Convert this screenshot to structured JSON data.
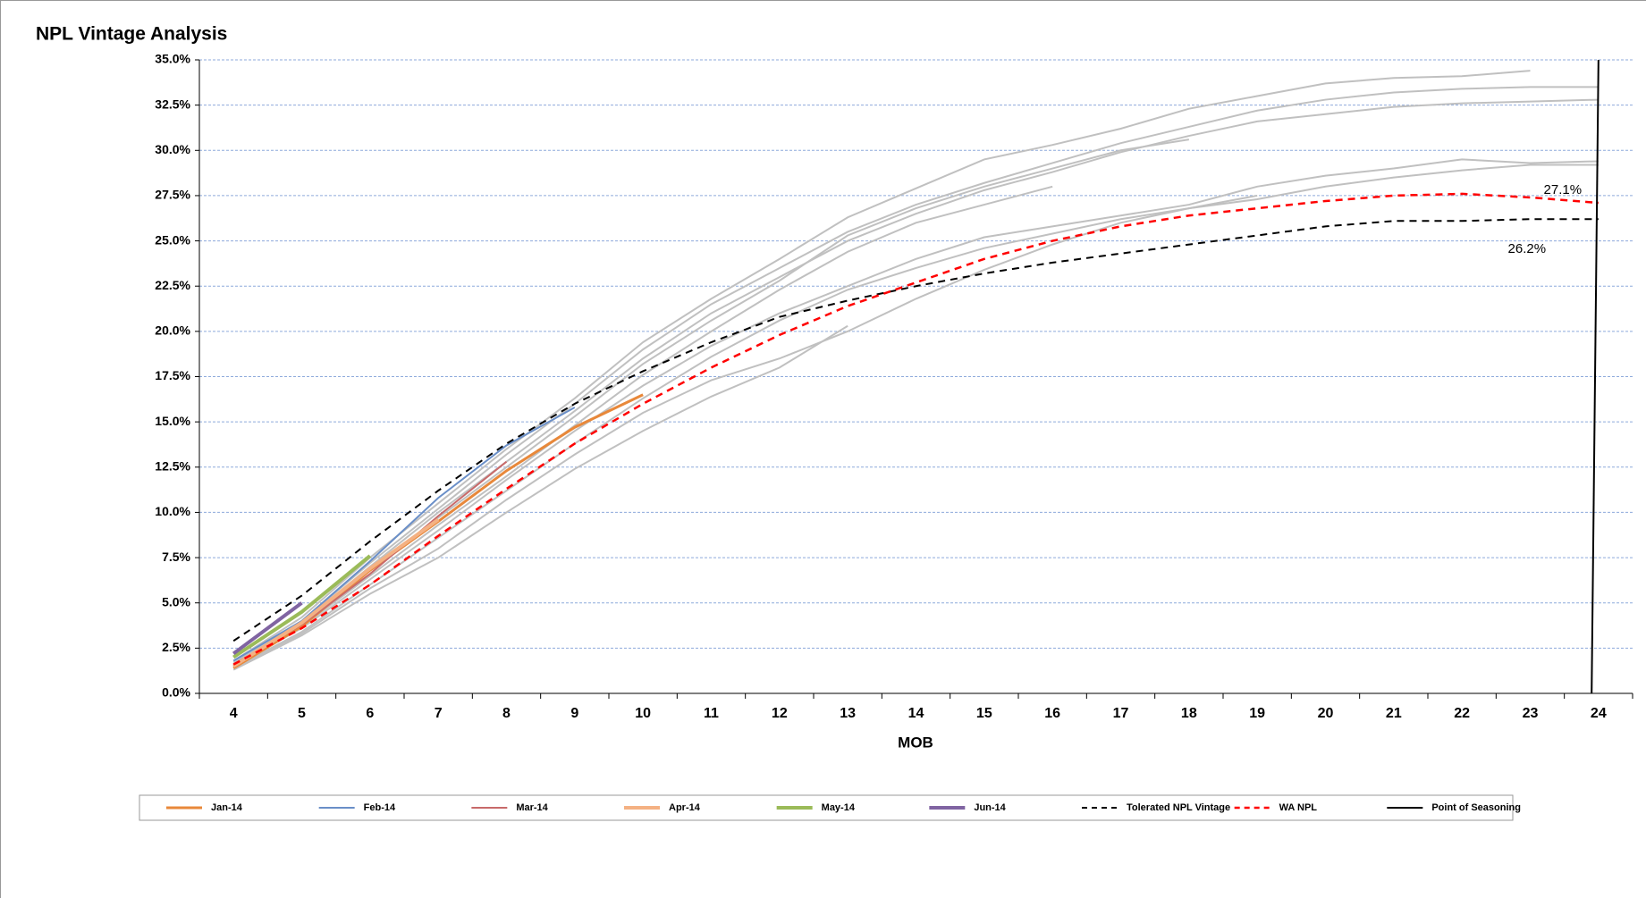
{
  "chart_data": {
    "type": "line",
    "title": "NPL Vintage Analysis",
    "x_label": "MOB",
    "x": [
      4,
      5,
      6,
      7,
      8,
      9,
      10,
      11,
      12,
      13,
      14,
      15,
      16,
      17,
      18,
      19,
      20,
      21,
      22,
      23,
      24
    ],
    "ylim": [
      0,
      35
    ],
    "yticks": [
      {
        "value": 0,
        "label": "0.0%"
      },
      {
        "value": 2.5,
        "label": "2.5%"
      },
      {
        "value": 5,
        "label": "5.0%"
      },
      {
        "value": 7.5,
        "label": "7.5%"
      },
      {
        "value": 10,
        "label": "10.0%"
      },
      {
        "value": 12.5,
        "label": "12.5%"
      },
      {
        "value": 15,
        "label": "15.0%"
      },
      {
        "value": 17.5,
        "label": "17.5%"
      },
      {
        "value": 20,
        "label": "20.0%"
      },
      {
        "value": 22.5,
        "label": "22.5%"
      },
      {
        "value": 25,
        "label": "25.0%"
      },
      {
        "value": 27.5,
        "label": "27.5%"
      },
      {
        "value": 30,
        "label": "30.0%"
      },
      {
        "value": 32.5,
        "label": "32.5%"
      },
      {
        "value": 35,
        "label": "35.0%"
      }
    ],
    "grid": true,
    "legend": "bottom",
    "series": [
      {
        "color": "#c0c0c0",
        "values": [
          1.8,
          4.2,
          7.5,
          10.5,
          13.5,
          16.3,
          19.4,
          21.8,
          24.0,
          26.3,
          27.9,
          29.5,
          30.3,
          31.2,
          32.3,
          33.0,
          33.7,
          34.0,
          34.1,
          34.4,
          null
        ]
      },
      {
        "color": "#c0c0c0",
        "values": [
          1.7,
          4.0,
          7.2,
          10.2,
          13.2,
          16.0,
          19.0,
          21.5,
          23.5,
          25.5,
          27.0,
          28.2,
          29.3,
          30.4,
          31.3,
          32.2,
          32.8,
          33.2,
          33.4,
          33.5,
          33.5
        ]
      },
      {
        "color": "#c0c0c0",
        "values": [
          1.6,
          3.9,
          7.0,
          10.0,
          12.8,
          15.6,
          18.5,
          21.0,
          23.0,
          25.0,
          26.5,
          27.8,
          28.8,
          29.9,
          30.8,
          31.6,
          32.0,
          32.4,
          32.6,
          32.7,
          32.8
        ]
      },
      {
        "color": "#c0c0c0",
        "values": [
          1.5,
          3.8,
          6.8,
          9.7,
          12.5,
          15.3,
          18.2,
          20.6,
          22.8,
          25.3,
          26.8,
          28.0,
          29.0,
          30.0,
          30.6,
          null,
          null,
          null,
          null,
          null,
          null
        ]
      },
      {
        "color": "#c0c0c0",
        "values": [
          1.5,
          3.7,
          6.5,
          9.3,
          12.0,
          14.8,
          17.6,
          20.0,
          22.3,
          24.4,
          26.0,
          27.0,
          28.0,
          null,
          null,
          null,
          null,
          null,
          null,
          null,
          null
        ]
      },
      {
        "color": "#c0c0c0",
        "values": [
          1.5,
          3.6,
          6.3,
          9.0,
          11.8,
          14.5,
          17.0,
          19.2,
          21.0,
          22.5,
          24.0,
          25.2,
          25.8,
          26.4,
          27.0,
          28.0,
          28.6,
          29.0,
          29.5,
          29.3,
          29.4
        ]
      },
      {
        "color": "#c0c0c0",
        "values": [
          1.4,
          3.4,
          6.0,
          8.6,
          11.2,
          13.8,
          16.3,
          18.6,
          20.6,
          22.3,
          23.5,
          24.6,
          25.4,
          26.2,
          26.8,
          27.3,
          28.0,
          28.5,
          28.9,
          29.2,
          29.2
        ]
      },
      {
        "color": "#c0c0c0",
        "values": [
          1.4,
          3.3,
          5.8,
          8.0,
          10.7,
          13.2,
          15.5,
          17.3,
          18.5,
          20.0,
          21.8,
          23.4,
          24.8,
          26.0,
          26.8,
          27.5,
          null,
          null,
          null,
          null,
          null
        ]
      },
      {
        "color": "#c0c0c0",
        "values": [
          1.3,
          3.2,
          5.5,
          7.5,
          10.0,
          12.4,
          14.5,
          16.4,
          18.0,
          20.3,
          null,
          null,
          null,
          null,
          null,
          null,
          null,
          null,
          null,
          null,
          null
        ]
      },
      {
        "name": "Jan-14",
        "color": "#e8883a",
        "width": 3,
        "values": [
          1.4,
          3.7,
          6.8,
          9.5,
          12.3,
          14.7,
          16.5,
          null,
          null,
          null,
          null,
          null,
          null,
          null,
          null,
          null,
          null,
          null,
          null,
          null,
          null
        ]
      },
      {
        "name": "Feb-14",
        "color": "#6a8fc8",
        "width": 2,
        "values": [
          1.8,
          4.0,
          7.3,
          10.8,
          13.7,
          15.8,
          null,
          null,
          null,
          null,
          null,
          null,
          null,
          null,
          null,
          null,
          null,
          null,
          null,
          null,
          null
        ]
      },
      {
        "name": "Mar-14",
        "color": "#c86a6a",
        "width": 2,
        "values": [
          1.6,
          3.8,
          6.6,
          9.8,
          12.8,
          null,
          null,
          null,
          null,
          null,
          null,
          null,
          null,
          null,
          null,
          null,
          null,
          null,
          null,
          null,
          null
        ]
      },
      {
        "name": "Apr-14",
        "color": "#f4b183",
        "width": 4,
        "values": [
          1.5,
          3.9,
          6.9,
          9.6,
          null,
          null,
          null,
          null,
          null,
          null,
          null,
          null,
          null,
          null,
          null,
          null,
          null,
          null,
          null,
          null,
          null
        ]
      },
      {
        "name": "May-14",
        "color": "#9bbb59",
        "width": 4,
        "values": [
          2.0,
          4.5,
          7.6,
          null,
          null,
          null,
          null,
          null,
          null,
          null,
          null,
          null,
          null,
          null,
          null,
          null,
          null,
          null,
          null,
          null,
          null
        ]
      },
      {
        "name": "Jun-14",
        "color": "#8064a2",
        "width": 4,
        "values": [
          2.2,
          5.0,
          null,
          null,
          null,
          null,
          null,
          null,
          null,
          null,
          null,
          null,
          null,
          null,
          null,
          null,
          null,
          null,
          null,
          null,
          null
        ]
      },
      {
        "name": "Tolerated NPL Vintage",
        "color": "#000000",
        "width": 2,
        "dash": true,
        "values": [
          2.9,
          5.4,
          8.4,
          11.2,
          13.8,
          16.0,
          17.8,
          19.4,
          20.8,
          21.7,
          22.5,
          23.2,
          23.8,
          24.3,
          24.8,
          25.3,
          25.8,
          26.1,
          26.1,
          26.2,
          26.2
        ],
        "value_labels": [
          null,
          null,
          null,
          null,
          null,
          null,
          null,
          null,
          null,
          null,
          null,
          null,
          null,
          null,
          null,
          null,
          null,
          null,
          null,
          null,
          "26.2%"
        ]
      },
      {
        "name": "WA NPL",
        "color": "#ff0000",
        "width": 2.5,
        "dash": true,
        "values": [
          1.6,
          3.6,
          6.0,
          8.7,
          11.3,
          13.8,
          16.0,
          18.0,
          19.8,
          21.4,
          22.7,
          24.0,
          25.0,
          25.8,
          26.4,
          26.8,
          27.2,
          27.5,
          27.6,
          27.4,
          27.1
        ],
        "value_labels": [
          null,
          null,
          null,
          null,
          null,
          null,
          null,
          null,
          null,
          null,
          null,
          null,
          null,
          null,
          null,
          null,
          null,
          null,
          null,
          null,
          "27.1%"
        ]
      },
      {
        "name": "Point of Seasoning",
        "color": "#000000",
        "width": 2,
        "x": [
          23.9,
          24
        ],
        "values": [
          0,
          35
        ]
      }
    ]
  }
}
